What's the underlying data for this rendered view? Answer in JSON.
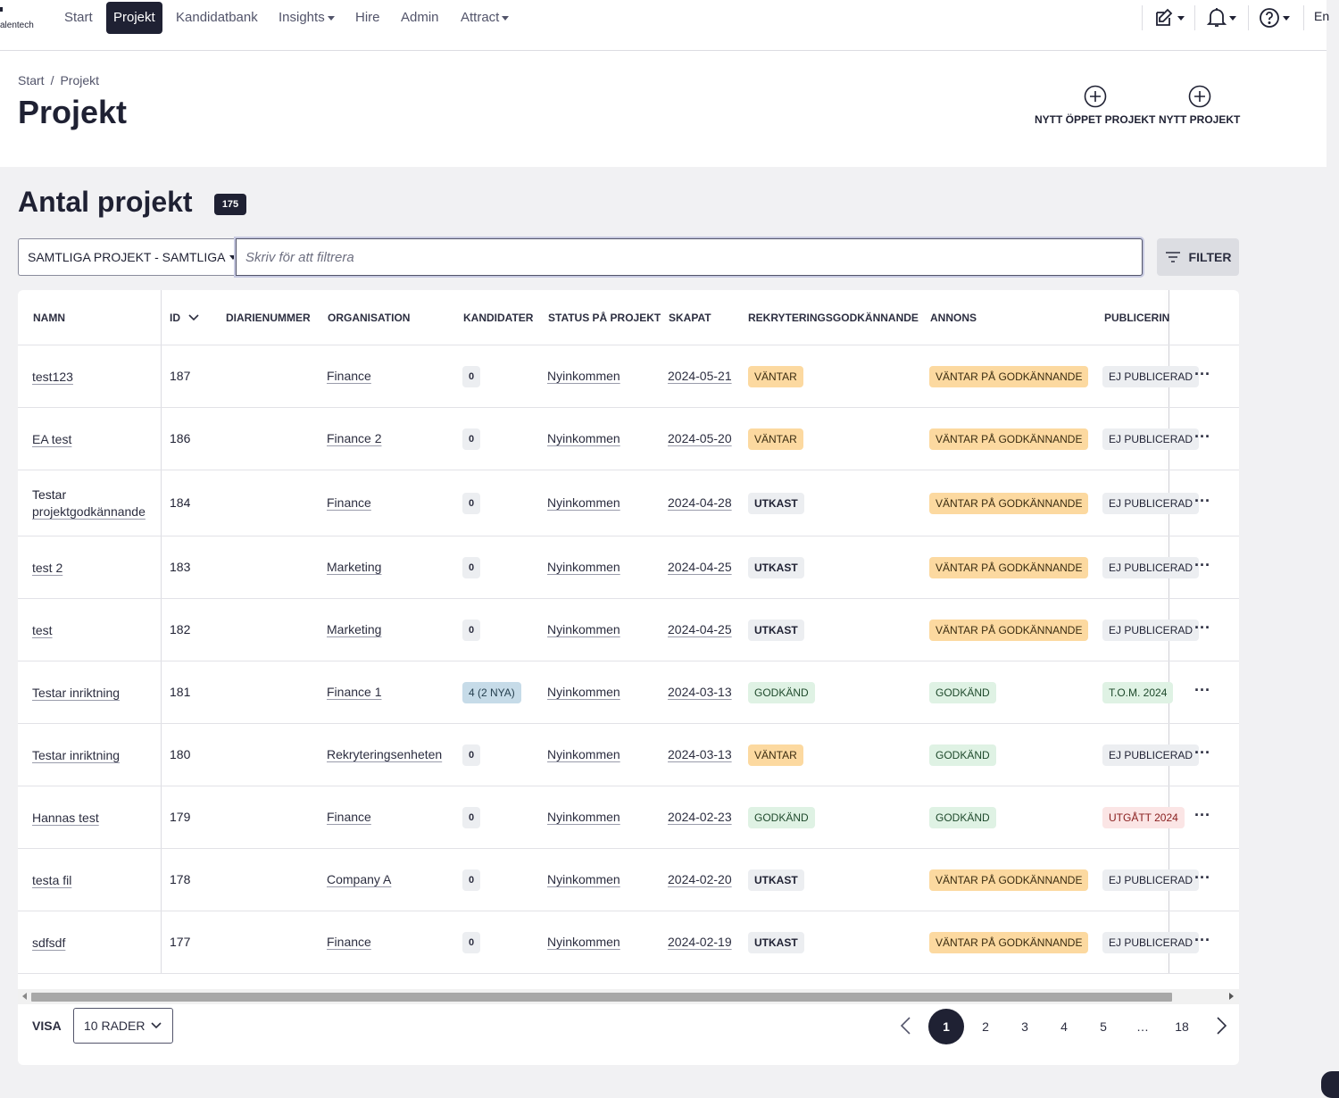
{
  "nav": {
    "logo_text": "alentech",
    "items": [
      {
        "label": "Start",
        "active": false,
        "dropdown": false
      },
      {
        "label": "Projekt",
        "active": true,
        "dropdown": false
      },
      {
        "label": "Kandidatbank",
        "active": false,
        "dropdown": false
      },
      {
        "label": "Insights",
        "active": false,
        "dropdown": true
      },
      {
        "label": "Hire",
        "active": false,
        "dropdown": false
      },
      {
        "label": "Admin",
        "active": false,
        "dropdown": false
      },
      {
        "label": "Attract",
        "active": false,
        "dropdown": true
      }
    ],
    "tools": [
      "edit-icon",
      "bell-icon",
      "help-icon"
    ],
    "language": "En"
  },
  "header": {
    "breadcrumb": [
      "Start",
      "Projekt"
    ],
    "breadcrumb_separator": "/",
    "title": "Projekt",
    "actions": [
      {
        "label": "NYTT ÖPPET PROJEKT",
        "icon": "plus-circle-icon"
      },
      {
        "label": "NYTT PROJEKT",
        "icon": "plus-circle-icon"
      }
    ]
  },
  "section": {
    "title": "Antal projekt",
    "count": "175"
  },
  "filters": {
    "scope": "SAMTLIGA PROJEKT - SAMTLIGA",
    "search_placeholder": "Skriv för att filtrera",
    "search_value": "",
    "filter_button": "FILTER"
  },
  "table": {
    "columns": [
      "NAMN",
      "ID",
      "DIARIENUMMER",
      "ORGANISATION",
      "KANDIDATER",
      "STATUS PÅ PROJEKT",
      "SKAPAT",
      "REKRYTERINGSGODKÄNNANDE",
      "ANNONS",
      "PUBLICERIN"
    ],
    "sort_column": "ID",
    "rows": [
      {
        "name": "test123",
        "id": "187",
        "diarie": "",
        "org": "Finance",
        "kand": "0",
        "status": "Nyinkommen",
        "created": "2024-05-21",
        "rekr": "VÄNTAR",
        "annons": "VÄNTAR PÅ GODKÄNNANDE",
        "pub": "EJ PUBLICERAD"
      },
      {
        "name": "EA test",
        "id": "186",
        "diarie": "",
        "org": "Finance 2",
        "kand": "0",
        "status": "Nyinkommen",
        "created": "2024-05-20",
        "rekr": "VÄNTAR",
        "annons": "VÄNTAR PÅ GODKÄNNANDE",
        "pub": "EJ PUBLICERAD"
      },
      {
        "name": "Testar projektgodkännande",
        "id": "184",
        "diarie": "",
        "org": "Finance",
        "kand": "0",
        "status": "Nyinkommen",
        "created": "2024-04-28",
        "rekr": "UTKAST",
        "annons": "VÄNTAR PÅ GODKÄNNANDE",
        "pub": "EJ PUBLICERAD"
      },
      {
        "name": "test 2",
        "id": "183",
        "diarie": "",
        "org": "Marketing",
        "kand": "0",
        "status": "Nyinkommen",
        "created": "2024-04-25",
        "rekr": "UTKAST",
        "annons": "VÄNTAR PÅ GODKÄNNANDE",
        "pub": "EJ PUBLICERAD"
      },
      {
        "name": "test",
        "id": "182",
        "diarie": "",
        "org": "Marketing",
        "kand": "0",
        "status": "Nyinkommen",
        "created": "2024-04-25",
        "rekr": "UTKAST",
        "annons": "VÄNTAR PÅ GODKÄNNANDE",
        "pub": "EJ PUBLICERAD"
      },
      {
        "name": "Testar inriktning",
        "id": "181",
        "diarie": "",
        "org": "Finance 1",
        "kand": "4 (2 NYA)",
        "status": "Nyinkommen",
        "created": "2024-03-13",
        "rekr": "GODKÄND",
        "annons": "GODKÄND",
        "pub": "T.O.M. 2024"
      },
      {
        "name": "Testar inriktning",
        "id": "180",
        "diarie": "",
        "org": "Rekryteringsenheten",
        "kand": "0",
        "status": "Nyinkommen",
        "created": "2024-03-13",
        "rekr": "VÄNTAR",
        "annons": "GODKÄND",
        "pub": "EJ PUBLICERAD"
      },
      {
        "name": "Hannas test",
        "id": "179",
        "diarie": "",
        "org": "Finance",
        "kand": "0",
        "status": "Nyinkommen",
        "created": "2024-02-23",
        "rekr": "GODKÄND",
        "annons": "GODKÄND",
        "pub": "UTGÅTT 2024"
      },
      {
        "name": "testa fil",
        "id": "178",
        "diarie": "",
        "org": "Company A",
        "kand": "0",
        "status": "Nyinkommen",
        "created": "2024-02-20",
        "rekr": "UTKAST",
        "annons": "VÄNTAR PÅ GODKÄNNANDE",
        "pub": "EJ PUBLICERAD"
      },
      {
        "name": "sdfsdf",
        "id": "177",
        "diarie": "",
        "org": "Finance",
        "kand": "0",
        "status": "Nyinkommen",
        "created": "2024-02-19",
        "rekr": "UTKAST",
        "annons": "VÄNTAR PÅ GODKÄNNANDE",
        "pub": "EJ PUBLICERAD"
      }
    ],
    "row_menu_label": "···"
  },
  "footer": {
    "show_label": "VISA",
    "rows_select": "10 RADER",
    "pages": [
      "1",
      "2",
      "3",
      "4",
      "5",
      "…",
      "18"
    ],
    "current_page": "1"
  }
}
